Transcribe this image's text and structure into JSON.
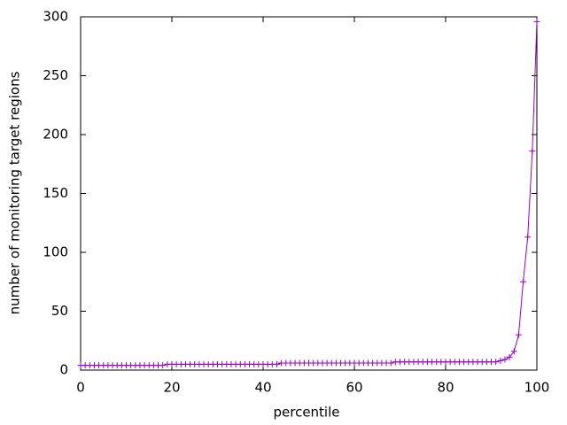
{
  "chart_data": {
    "type": "line",
    "x_label": "percentile",
    "y_label": "number of monitoring target regions",
    "x": [
      0,
      1,
      2,
      3,
      4,
      5,
      6,
      7,
      8,
      9,
      10,
      11,
      12,
      13,
      14,
      15,
      16,
      17,
      18,
      19,
      20,
      21,
      22,
      23,
      24,
      25,
      26,
      27,
      28,
      29,
      30,
      31,
      32,
      33,
      34,
      35,
      36,
      37,
      38,
      39,
      40,
      41,
      42,
      43,
      44,
      45,
      46,
      47,
      48,
      49,
      50,
      51,
      52,
      53,
      54,
      55,
      56,
      57,
      58,
      59,
      60,
      61,
      62,
      63,
      64,
      65,
      66,
      67,
      68,
      69,
      70,
      71,
      72,
      73,
      74,
      75,
      76,
      77,
      78,
      79,
      80,
      81,
      82,
      83,
      84,
      85,
      86,
      87,
      88,
      89,
      90,
      91,
      92,
      93,
      94,
      95,
      96,
      97,
      98,
      99,
      100
    ],
    "series": [
      {
        "color": "#9400d3",
        "marker": "+",
        "values": [
          4,
          4,
          4,
          4,
          4,
          4,
          4,
          4,
          4,
          4,
          4,
          4,
          4,
          4,
          4,
          4,
          4,
          4,
          4,
          5,
          5,
          5,
          5,
          5,
          5,
          5,
          5,
          5,
          5,
          5,
          5,
          5,
          5,
          5,
          5,
          5,
          5,
          5,
          5,
          5,
          5,
          5,
          5,
          5,
          6,
          6,
          6,
          6,
          6,
          6,
          6,
          6,
          6,
          6,
          6,
          6,
          6,
          6,
          6,
          6,
          6,
          6,
          6,
          6,
          6,
          6,
          6,
          6,
          6,
          7,
          7,
          7,
          7,
          7,
          7,
          7,
          7,
          7,
          7,
          7,
          7,
          7,
          7,
          7,
          7,
          7,
          7,
          7,
          7,
          7,
          7,
          7,
          8,
          9,
          11,
          16,
          30,
          75,
          113,
          186,
          296
        ]
      }
    ],
    "xlim": [
      0,
      100
    ],
    "xticks": [
      0,
      20,
      40,
      60,
      80,
      100
    ],
    "ylim": [
      0,
      300
    ],
    "yticks": [
      0,
      50,
      100,
      150,
      200,
      250,
      300
    ]
  }
}
